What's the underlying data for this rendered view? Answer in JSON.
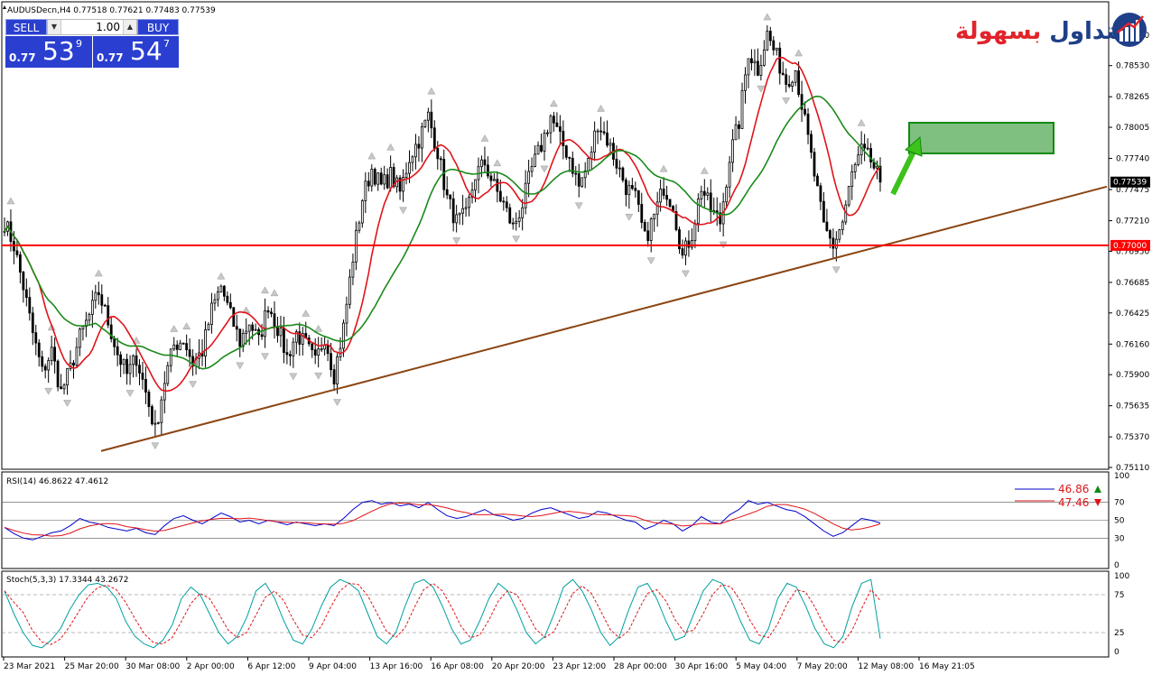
{
  "symbol_header": "AUDUSDecn,H4  0.77518 0.77621 0.77483 0.77539",
  "trade_panel": {
    "sell_label": "SELL",
    "buy_label": "BUY",
    "lot": "1.00",
    "sell_prefix": "0.77",
    "sell_big": "53",
    "sell_sup": "9",
    "buy_prefix": "0.77",
    "buy_big": "54",
    "buy_sup": "7"
  },
  "brand": {
    "accent": "بسهولة",
    "main": "التداول"
  },
  "colors": {
    "bull": "#ffffff",
    "bear": "#000000",
    "ma_fast": "#e0141a",
    "ma_slow": "#1a8a1a",
    "trendline": "#8b4513",
    "support": "#ff0000",
    "target_box": "#7fbf7f",
    "target_border": "#118a11",
    "arrow": "#3cc21a",
    "rsi": "#0000cc",
    "rsi_signal": "#e0141a",
    "stoch_main": "#00a0a0",
    "stoch_signal": "#e0141a"
  },
  "chart_data": [
    {
      "type": "candlestick",
      "title": "AUDUSDecn,H4",
      "ylim": [
        0.7511,
        0.7905
      ],
      "y_ticks": [
        "0.78790",
        "0.78530",
        "0.78265",
        "0.78005",
        "0.77740",
        "0.77475",
        "0.77210",
        "0.76950",
        "0.76685",
        "0.76425",
        "0.76160",
        "0.75900",
        "0.75635",
        "0.75370",
        "0.75110"
      ],
      "x_ticks": [
        "23 Mar 2021",
        "25 Mar 20:00",
        "30 Mar 08:00",
        "2 Apr 00:00",
        "6 Apr 12:00",
        "9 Apr 04:00",
        "13 Apr 16:00",
        "16 Apr 08:00",
        "20 Apr 20:00",
        "23 Apr 12:00",
        "28 Apr 00:00",
        "30 Apr 16:00",
        "5 May 04:00",
        "7 May 20:00",
        "12 May 08:00",
        "16 May 21:05"
      ],
      "close_path": [
        0.772,
        0.77,
        0.7665,
        0.7625,
        0.7592,
        0.761,
        0.7575,
        0.7595,
        0.7622,
        0.764,
        0.766,
        0.7635,
        0.7608,
        0.759,
        0.7605,
        0.7575,
        0.7542,
        0.7585,
        0.7615,
        0.762,
        0.76,
        0.761,
        0.7645,
        0.7665,
        0.764,
        0.7618,
        0.7635,
        0.7618,
        0.765,
        0.763,
        0.7605,
        0.7625,
        0.7615,
        0.76,
        0.7623,
        0.759,
        0.763,
        0.769,
        0.774,
        0.7765,
        0.775,
        0.776,
        0.7745,
        0.7775,
        0.779,
        0.781,
        0.778,
        0.774,
        0.772,
        0.7725,
        0.776,
        0.777,
        0.775,
        0.7735,
        0.7715,
        0.7735,
        0.7765,
        0.7785,
        0.781,
        0.779,
        0.7775,
        0.775,
        0.777,
        0.7805,
        0.779,
        0.777,
        0.775,
        0.774,
        0.7705,
        0.7725,
        0.775,
        0.7735,
        0.769,
        0.771,
        0.775,
        0.773,
        0.772,
        0.7775,
        0.7805,
        0.7865,
        0.785,
        0.788,
        0.786,
        0.784,
        0.785,
        0.7805,
        0.776,
        0.7715,
        0.77,
        0.772,
        0.776,
        0.778,
        0.7772,
        0.7754
      ],
      "last_price": 0.77539,
      "last_price_label": "0.77539",
      "support_level": 0.77,
      "support_label": "0.77000",
      "trendline": {
        "from_index": 16,
        "from_price": 0.7525,
        "to_index": 125,
        "to_price": 0.775
      },
      "moving_averages": [
        "fast",
        "slow"
      ],
      "annotations": [
        "target-box",
        "up-arrow"
      ]
    },
    {
      "type": "line",
      "title": "RSI(14) 46.8622 47.4612",
      "ylim": [
        0,
        100
      ],
      "levels": [
        30,
        50,
        70
      ],
      "y_ticks": [
        "100",
        "70",
        "50",
        "30",
        "0"
      ],
      "series": [
        {
          "name": "rsi",
          "last": "46.86",
          "values": [
            42,
            35,
            30,
            28,
            32,
            36,
            38,
            44,
            52,
            48,
            46,
            42,
            40,
            38,
            41,
            36,
            34,
            44,
            52,
            55,
            50,
            46,
            52,
            58,
            54,
            48,
            50,
            46,
            50,
            48,
            45,
            48,
            46,
            44,
            46,
            44,
            52,
            62,
            70,
            72,
            68,
            70,
            66,
            68,
            64,
            70,
            62,
            55,
            52,
            54,
            58,
            62,
            56,
            54,
            50,
            52,
            58,
            62,
            64,
            60,
            56,
            52,
            54,
            60,
            58,
            54,
            50,
            48,
            40,
            44,
            50,
            46,
            38,
            44,
            54,
            48,
            46,
            56,
            62,
            72,
            68,
            70,
            66,
            62,
            60,
            54,
            46,
            38,
            32,
            36,
            44,
            52,
            50,
            47
          ]
        },
        {
          "name": "signal",
          "last": "47.46"
        }
      ]
    },
    {
      "type": "line",
      "title": "Stoch(5,3,3) 17.3344 43.2672",
      "ylim": [
        0,
        100
      ],
      "levels": [
        25,
        75
      ],
      "y_ticks": [
        "100",
        "75",
        "25",
        "0"
      ],
      "series": [
        {
          "name": "main",
          "values": [
            80,
            50,
            25,
            8,
            5,
            15,
            30,
            55,
            75,
            88,
            90,
            85,
            70,
            40,
            20,
            10,
            5,
            15,
            35,
            70,
            85,
            75,
            50,
            25,
            10,
            20,
            45,
            80,
            90,
            70,
            40,
            15,
            10,
            30,
            60,
            85,
            95,
            90,
            80,
            50,
            20,
            10,
            25,
            60,
            90,
            95,
            85,
            60,
            30,
            10,
            15,
            40,
            70,
            90,
            80,
            55,
            25,
            10,
            20,
            50,
            85,
            95,
            80,
            55,
            25,
            8,
            20,
            55,
            85,
            90,
            70,
            40,
            15,
            20,
            50,
            80,
            95,
            90,
            70,
            40,
            15,
            10,
            30,
            70,
            90,
            85,
            60,
            30,
            10,
            5,
            20,
            60,
            90,
            95,
            17
          ]
        },
        {
          "name": "signal"
        }
      ]
    }
  ]
}
